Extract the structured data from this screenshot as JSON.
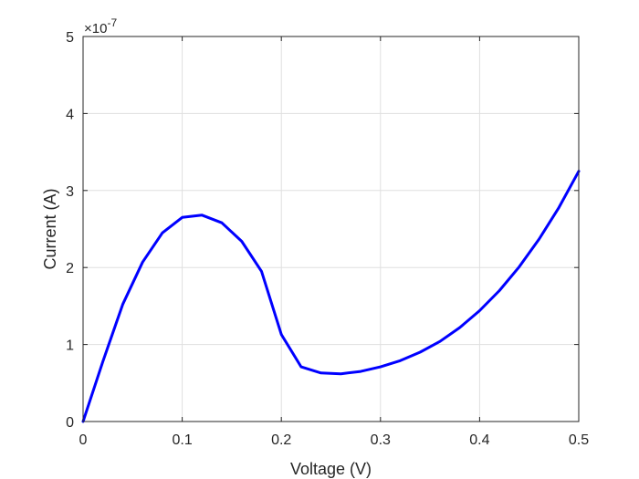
{
  "chart_data": {
    "type": "line",
    "xlabel": "Voltage (V)",
    "ylabel": "Current (A)",
    "y_exponent_label": "×10",
    "y_exponent_power": "-7",
    "xlim": [
      0,
      0.5
    ],
    "ylim": [
      0,
      5
    ],
    "x_ticks": [
      0,
      0.1,
      0.2,
      0.3,
      0.4,
      0.5
    ],
    "x_tick_labels": [
      "0",
      "0.1",
      "0.2",
      "0.3",
      "0.4",
      "0.5"
    ],
    "y_ticks": [
      0,
      1,
      2,
      3,
      4,
      5
    ],
    "y_tick_labels": [
      "0",
      "1",
      "2",
      "3",
      "4",
      "5"
    ],
    "grid": true,
    "series": [
      {
        "color": "#0000ff",
        "x": [
          0,
          0.02,
          0.04,
          0.06,
          0.08,
          0.1,
          0.12,
          0.14,
          0.16,
          0.18,
          0.2,
          0.22,
          0.24,
          0.26,
          0.28,
          0.3,
          0.32,
          0.34,
          0.36,
          0.38,
          0.4,
          0.42,
          0.44,
          0.46,
          0.48,
          0.5
        ],
        "y": [
          0,
          0.78,
          1.52,
          2.07,
          2.45,
          2.65,
          2.68,
          2.58,
          2.34,
          1.95,
          1.13,
          0.71,
          0.63,
          0.62,
          0.65,
          0.71,
          0.79,
          0.9,
          1.04,
          1.22,
          1.44,
          1.7,
          2.01,
          2.37,
          2.78,
          3.25
        ]
      }
    ]
  }
}
